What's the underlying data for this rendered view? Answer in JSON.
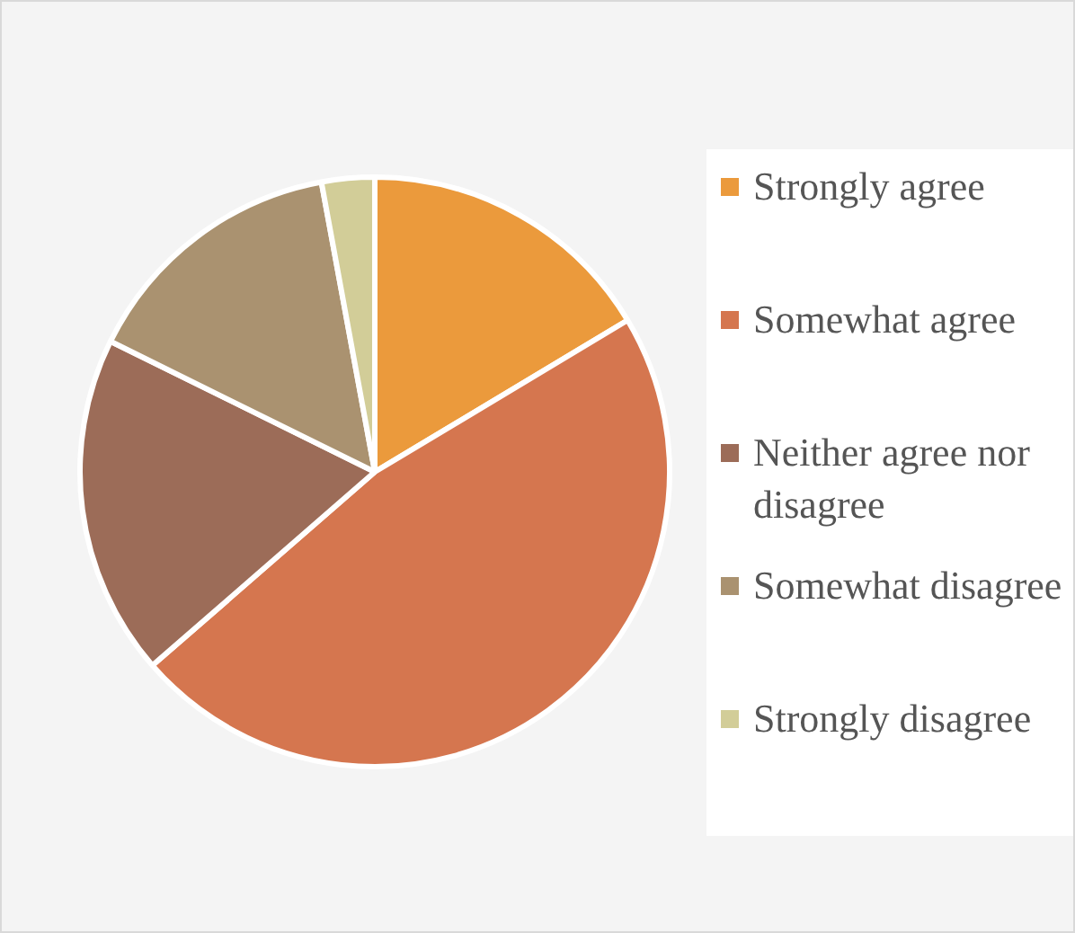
{
  "chart_data": {
    "type": "pie",
    "categories": [
      "Strongly agree",
      "Somewhat agree",
      "Neither agree nor disagree",
      "Somewhat disagree",
      "Strongly disagree"
    ],
    "values": [
      16.4,
      47.2,
      18.7,
      14.8,
      2.9
    ],
    "colors": [
      "#eb9a3c",
      "#d5764f",
      "#9c6c58",
      "#aa9270",
      "#d2cd98"
    ],
    "legend": "right"
  }
}
